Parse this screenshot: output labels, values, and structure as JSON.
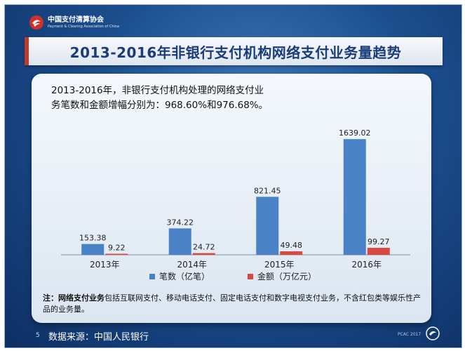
{
  "header": {
    "org_name_cn": "中国支付清算协会",
    "org_name_en": "Payment & Clearing Association of China"
  },
  "title": "2013-2016年非银行支付机构网络支付业务量趋势",
  "intro_line1": "2013-2016年，非银行支付机构处理的网络支付业",
  "intro_line2": "务笔数和金额增幅分别为：968.60%和976.68%。",
  "chart_data": {
    "type": "bar",
    "categories": [
      "2013年",
      "2014年",
      "2015年",
      "2016年"
    ],
    "series": [
      {
        "name": "笔数（亿笔）",
        "values": [
          153.38,
          374.22,
          821.45,
          1639.02
        ],
        "color": "#4a82c7"
      },
      {
        "name": "金额（万亿元）",
        "values": [
          9.22,
          24.72,
          49.48,
          99.27
        ],
        "color": "#d9493f"
      }
    ],
    "ylim": [
      0,
      1750
    ],
    "legend": "bottom",
    "grid": false
  },
  "note": {
    "prefix": "注：",
    "term": "网络支付业务",
    "text": "包括互联网支付、移动电话支付、固定电话支付和数字电视支付业务，不含红包类等娱乐性产品的业务量。"
  },
  "footer": {
    "page_number": "5",
    "source": "数据来源：中国人民银行",
    "brand": "PCAC 2017"
  }
}
